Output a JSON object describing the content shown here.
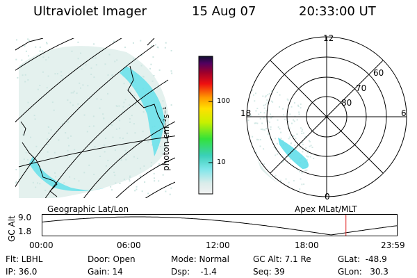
{
  "header": {
    "title": "Ultraviolet Imager",
    "date": "15 Aug 07",
    "time": "20:33:00 UT"
  },
  "colorbar": {
    "label": "photon cm⁻²s⁻¹",
    "ticks": [
      "100",
      "10"
    ]
  },
  "polar_plot": {
    "mlt_labels": [
      "12",
      "18",
      "6",
      "0"
    ],
    "lat_labels": [
      "60",
      "70",
      "80"
    ]
  },
  "left_map": {
    "caption": "Geographic Lat/Lon"
  },
  "right_map": {
    "caption": "Apex MLat/MLT"
  },
  "altitude_plot": {
    "ylabel": "GC Alt",
    "ymax_label": "9.0",
    "ymin_label": "1.8",
    "x_labels": [
      "00:00",
      "06:00",
      "12:00",
      "18:00",
      "23:59"
    ],
    "current_marker_fraction": 0.855
  },
  "footer": {
    "flt": "Flt: LBHL",
    "ip": "IP: 36.0",
    "door": "Door: Open",
    "gain": "Gain: 14",
    "mode": "Mode: Normal",
    "dsp": "Dsp:    -1.4",
    "gc_alt": "GC Alt: 7.1 Re",
    "seq": "Seq: 39",
    "glat": "GLat:  -48.9",
    "glon": "GLon:   30.3"
  },
  "colors": {
    "aurora": "#55e0e8",
    "speckle": "#d6ece8",
    "marker": "#e02020"
  }
}
